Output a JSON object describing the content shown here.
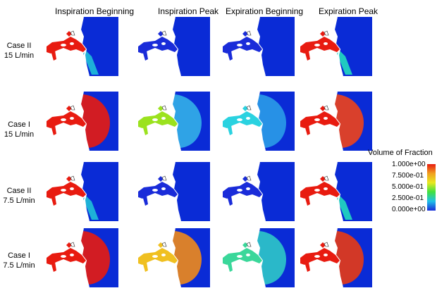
{
  "columns": [
    {
      "label": "Inspiration Beginning"
    },
    {
      "label": "Inspiration Peak"
    },
    {
      "label": "Expiration Beginning"
    },
    {
      "label": "Expiration Peak"
    }
  ],
  "rows": [
    {
      "label_line1": "Case II",
      "label_line2": "15 L/min"
    },
    {
      "label_line1": "Case I",
      "label_line2": "15 L/min"
    },
    {
      "label_line1": "Case II",
      "label_line2": "7.5 L/min"
    },
    {
      "label_line1": "Case I",
      "label_line2": "7.5 L/min"
    }
  ],
  "cells": [
    [
      {
        "airway": "#e81b10",
        "plume": "jet",
        "plume_color": "#1fb8d8"
      },
      {
        "airway": "#1a2cd9",
        "plume": "none",
        "plume_color": "#0a2bd6"
      },
      {
        "airway": "#1a2cd9",
        "plume": "none",
        "plume_color": "#0a2bd6"
      },
      {
        "airway": "#e81b10",
        "plume": "jet",
        "plume_color": "#22d2c0"
      }
    ],
    [
      {
        "airway": "#e81b10",
        "plume": "cloud",
        "plume_color": "#e81b10"
      },
      {
        "airway": "#9be21e",
        "plume": "cloud",
        "plume_color": "#33b0e8"
      },
      {
        "airway": "#2ad2e0",
        "plume": "cloud",
        "plume_color": "#2a9ce8"
      },
      {
        "airway": "#e81b10",
        "plume": "cloud",
        "plume_color": "#f0421a"
      }
    ],
    [
      {
        "airway": "#e81b10",
        "plume": "jet",
        "plume_color": "#1fb8d8"
      },
      {
        "airway": "#1a2cd9",
        "plume": "none",
        "plume_color": "#0a2bd6"
      },
      {
        "airway": "#1a2cd9",
        "plume": "none",
        "plume_color": "#0a2bd6"
      },
      {
        "airway": "#e81b10",
        "plume": "jet",
        "plume_color": "#22d2c0"
      }
    ],
    [
      {
        "airway": "#e81b10",
        "plume": "cloud",
        "plume_color": "#e81b10"
      },
      {
        "airway": "#f0c020",
        "plume": "cloud",
        "plume_color": "#f08a1a"
      },
      {
        "airway": "#3ad79a",
        "plume": "cloud",
        "plume_color": "#2ec8c8"
      },
      {
        "airway": "#e81b10",
        "plume": "cloud",
        "plume_color": "#e83a14"
      }
    ]
  ],
  "background_color": "#0a2bd6",
  "colorbar": {
    "title": "Volume of Fraction",
    "ticks": [
      "1.000e+00",
      "7.500e-01",
      "5.000e-01",
      "2.500e-01",
      "0.000e+00"
    ],
    "colors": [
      "#e81b10",
      "#f0a020",
      "#e8e820",
      "#40e040",
      "#20c0e8",
      "#1a2cd9"
    ]
  }
}
